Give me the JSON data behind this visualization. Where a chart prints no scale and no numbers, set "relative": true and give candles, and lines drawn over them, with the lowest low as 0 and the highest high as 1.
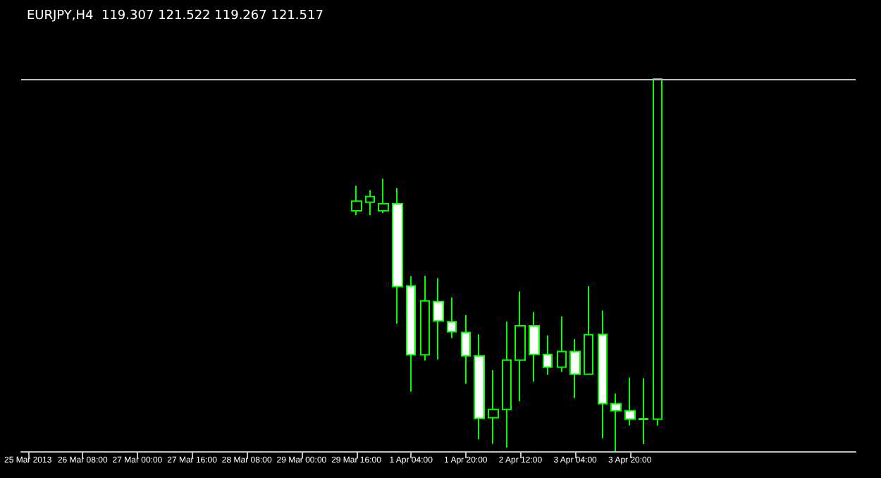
{
  "chart_data": {
    "type": "candlestick",
    "title": "EURJPY,H4  119.307 121.522 119.267 121.517",
    "relative": true,
    "color": "#00ff00",
    "categories": [
      "25 Mar 2013",
      null,
      null,
      null,
      "26 Mar 08:00",
      null,
      null,
      null,
      "27 Mar 00:00",
      null,
      null,
      null,
      "27 Mar 16:00",
      null,
      null,
      null,
      "28 Mar 08:00",
      null,
      null,
      null,
      "29 Mar 00:00",
      null,
      null,
      null,
      "29 Mar 16:00",
      null,
      null,
      null,
      "1 Apr 04:00",
      null,
      null,
      null,
      "1 Apr 20:00",
      null,
      null,
      null,
      "2 Apr 12:00",
      null,
      null,
      null,
      "3 Apr 04:00",
      null,
      null,
      null,
      "3 Apr 20:00",
      null,
      null,
      null,
      null,
      null,
      null,
      null,
      null,
      null,
      null,
      null,
      null,
      null,
      null,
      null,
      null
    ],
    "ohlc": [
      null,
      null,
      null,
      null,
      null,
      null,
      null,
      null,
      null,
      null,
      null,
      null,
      null,
      null,
      null,
      null,
      null,
      null,
      null,
      null,
      null,
      null,
      null,
      null,
      [
        0.646,
        0.713,
        0.634,
        0.672
      ],
      [
        0.669,
        0.701,
        0.634,
        0.684
      ],
      [
        0.646,
        0.732,
        0.64,
        0.665
      ],
      [
        0.665,
        0.707,
        0.343,
        0.442
      ],
      [
        0.444,
        0.47,
        0.16,
        0.259
      ],
      [
        0.259,
        0.471,
        0.244,
        0.404
      ],
      [
        0.402,
        0.465,
        0.246,
        0.35
      ],
      [
        0.348,
        0.413,
        0.304,
        0.321
      ],
      [
        0.319,
        0.366,
        0.181,
        0.256
      ],
      [
        0.256,
        0.314,
        0.032,
        0.088
      ],
      [
        0.09,
        0.218,
        0.02,
        0.112
      ],
      [
        0.112,
        0.348,
        0.01,
        0.245
      ],
      [
        0.245,
        0.429,
        0.134,
        0.337
      ],
      [
        0.337,
        0.374,
        0.187,
        0.26
      ],
      [
        0.26,
        0.311,
        0.205,
        0.226
      ],
      [
        0.226,
        0.362,
        0.213,
        0.268
      ],
      [
        0.268,
        0.301,
        0.143,
        0.207
      ],
      [
        0.207,
        0.443,
        0.207,
        0.313
      ],
      [
        0.314,
        0.378,
        0.035,
        0.128
      ],
      [
        0.128,
        0.155,
        0,
        0.109
      ],
      [
        0.109,
        0.198,
        0.069,
        0.086
      ],
      [
        0.085,
        0.196,
        0.019,
        0.087
      ],
      [
        0.086,
        1,
        0.069,
        1
      ],
      null,
      null,
      null,
      null,
      null,
      null,
      null,
      null,
      null,
      null,
      null,
      null,
      null,
      null
    ],
    "ref_lines": [
      {
        "axis": "y",
        "value": 1,
        "color": "#c0c0c0"
      }
    ]
  }
}
